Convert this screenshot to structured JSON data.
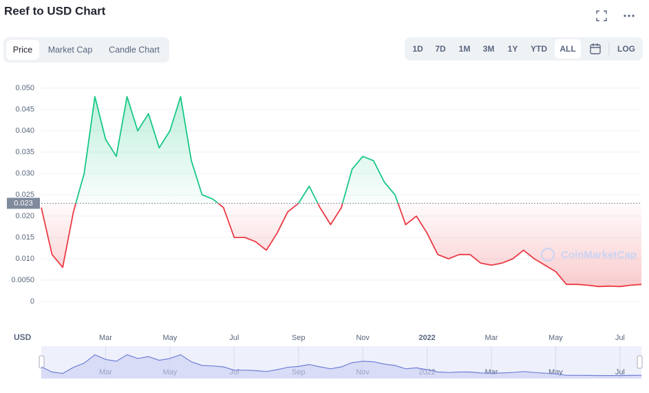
{
  "ui": {
    "title": "Reef to USD Chart",
    "tabs": [
      "Price",
      "Market Cap",
      "Candle Chart"
    ],
    "ranges": [
      "1D",
      "7D",
      "1M",
      "3M",
      "1Y",
      "YTD",
      "ALL"
    ],
    "log_button": "LOG",
    "currency": "USD",
    "watermark": "CoinMarketCap"
  },
  "chart_data": {
    "type": "line",
    "categories": [
      null,
      null,
      null,
      null,
      null,
      null,
      "Mar",
      null,
      null,
      null,
      null,
      null,
      "May",
      null,
      null,
      null,
      null,
      null,
      "Jul",
      null,
      null,
      null,
      null,
      null,
      "Sep",
      null,
      null,
      null,
      null,
      null,
      "Nov",
      null,
      null,
      null,
      null,
      null,
      "2022",
      null,
      null,
      null,
      null,
      null,
      "Mar",
      null,
      null,
      null,
      null,
      null,
      "May",
      null,
      null,
      null,
      null,
      null,
      "Jul",
      null,
      null
    ],
    "series": [
      {
        "name": "Price",
        "values": [
          0.022,
          0.011,
          0.008,
          0.021,
          0.03,
          0.048,
          0.038,
          0.034,
          0.048,
          0.04,
          0.044,
          0.036,
          0.04,
          0.048,
          0.033,
          0.025,
          0.024,
          0.022,
          0.015,
          0.015,
          0.014,
          0.012,
          0.016,
          0.021,
          0.023,
          0.027,
          0.022,
          0.018,
          0.022,
          0.031,
          0.034,
          0.033,
          0.028,
          0.025,
          0.018,
          0.02,
          0.016,
          0.011,
          0.01,
          0.011,
          0.011,
          0.009,
          0.0085,
          0.009,
          0.01,
          0.012,
          0.01,
          0.0085,
          0.007,
          0.004,
          0.004,
          0.0038,
          0.0035,
          0.0036,
          0.0035,
          0.0038,
          0.004
        ]
      }
    ],
    "baseline": 0.023,
    "up_color": "#16c784",
    "down_color": "#ea3943",
    "ylim": [
      0,
      0.05
    ],
    "yticks": [
      0,
      {
        "value": 0.005,
        "label": "0.0050"
      },
      {
        "value": 0.01,
        "label": "0.010"
      },
      {
        "value": 0.015,
        "label": "0.015"
      },
      {
        "value": 0.02,
        "label": "0.020"
      },
      {
        "value": 0.025,
        "label": "0.025"
      },
      {
        "value": 0.03,
        "label": "0.030"
      },
      {
        "value": 0.035,
        "label": "0.035"
      },
      {
        "value": 0.04,
        "label": "0.040"
      },
      {
        "value": 0.045,
        "label": "0.045"
      },
      {
        "value": 0.05,
        "label": "0.050"
      }
    ],
    "grid": true
  }
}
